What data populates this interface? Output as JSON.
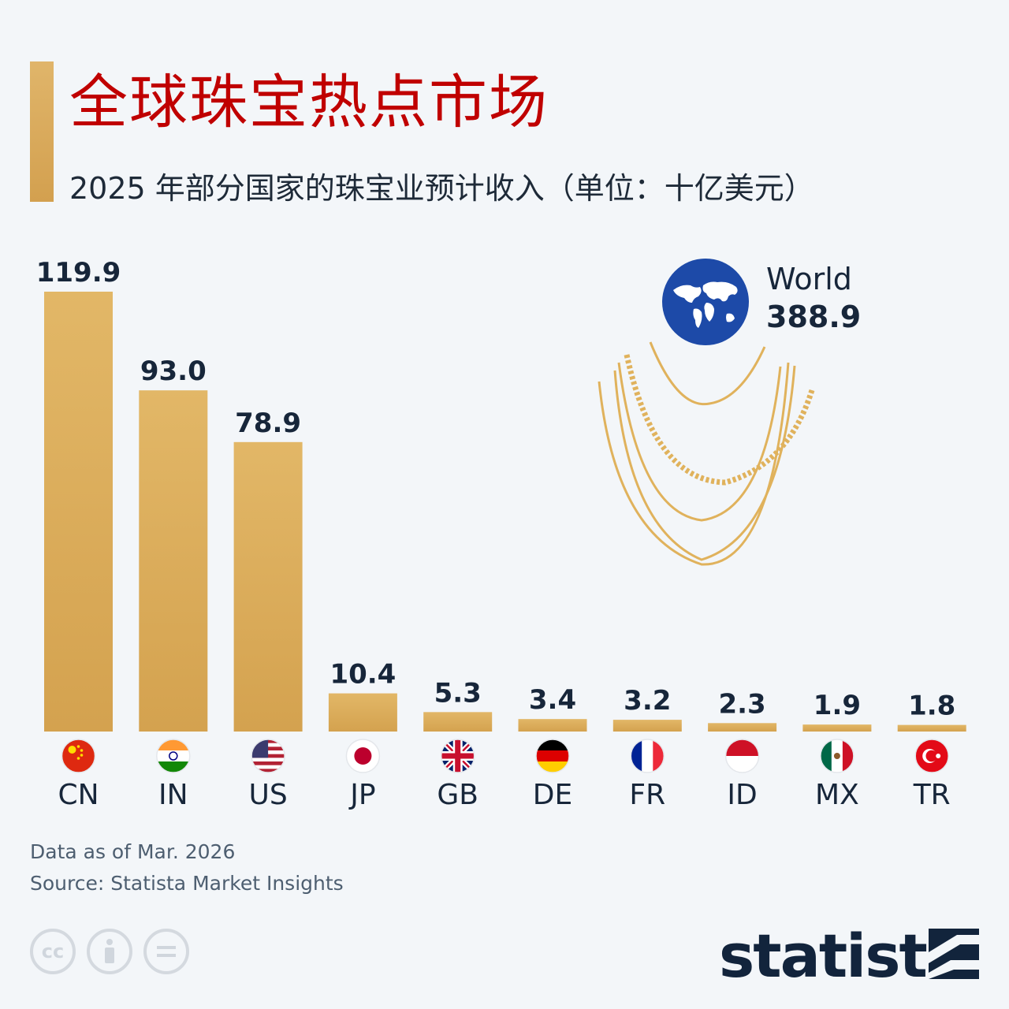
{
  "header": {
    "title": "全球珠宝热点市场",
    "subtitle": "2025 年部分国家的珠宝业预计收入（单位：十亿美元）"
  },
  "world": {
    "label": "World",
    "value": "388.9"
  },
  "colors": {
    "bar": "#d9aa58",
    "title": "#c00000",
    "text": "#17263a",
    "globe": "#1d4aa8"
  },
  "chart_data": {
    "type": "bar",
    "categories": [
      "CN",
      "IN",
      "US",
      "JP",
      "GB",
      "DE",
      "FR",
      "ID",
      "MX",
      "TR"
    ],
    "values": [
      119.9,
      93.0,
      78.9,
      10.4,
      5.3,
      3.4,
      3.2,
      2.3,
      1.9,
      1.8
    ],
    "value_labels": [
      "119.9",
      "93.0",
      "78.9",
      "10.4",
      "5.3",
      "3.4",
      "3.2",
      "2.3",
      "1.9",
      "1.8"
    ],
    "flags": [
      "china-flag-icon",
      "india-flag-icon",
      "usa-flag-icon",
      "japan-flag-icon",
      "uk-flag-icon",
      "germany-flag-icon",
      "france-flag-icon",
      "indonesia-flag-icon",
      "mexico-flag-icon",
      "turkey-flag-icon"
    ],
    "title": "全球珠宝热点市场",
    "ylim": [
      0,
      119.9
    ],
    "grid": false
  },
  "footer": {
    "date_note": "Data as of Mar. 2026",
    "source": "Source: Statista Market Insights",
    "brand": "statista",
    "cc_icons": [
      "cc-icon",
      "by-icon",
      "nd-icon"
    ]
  }
}
